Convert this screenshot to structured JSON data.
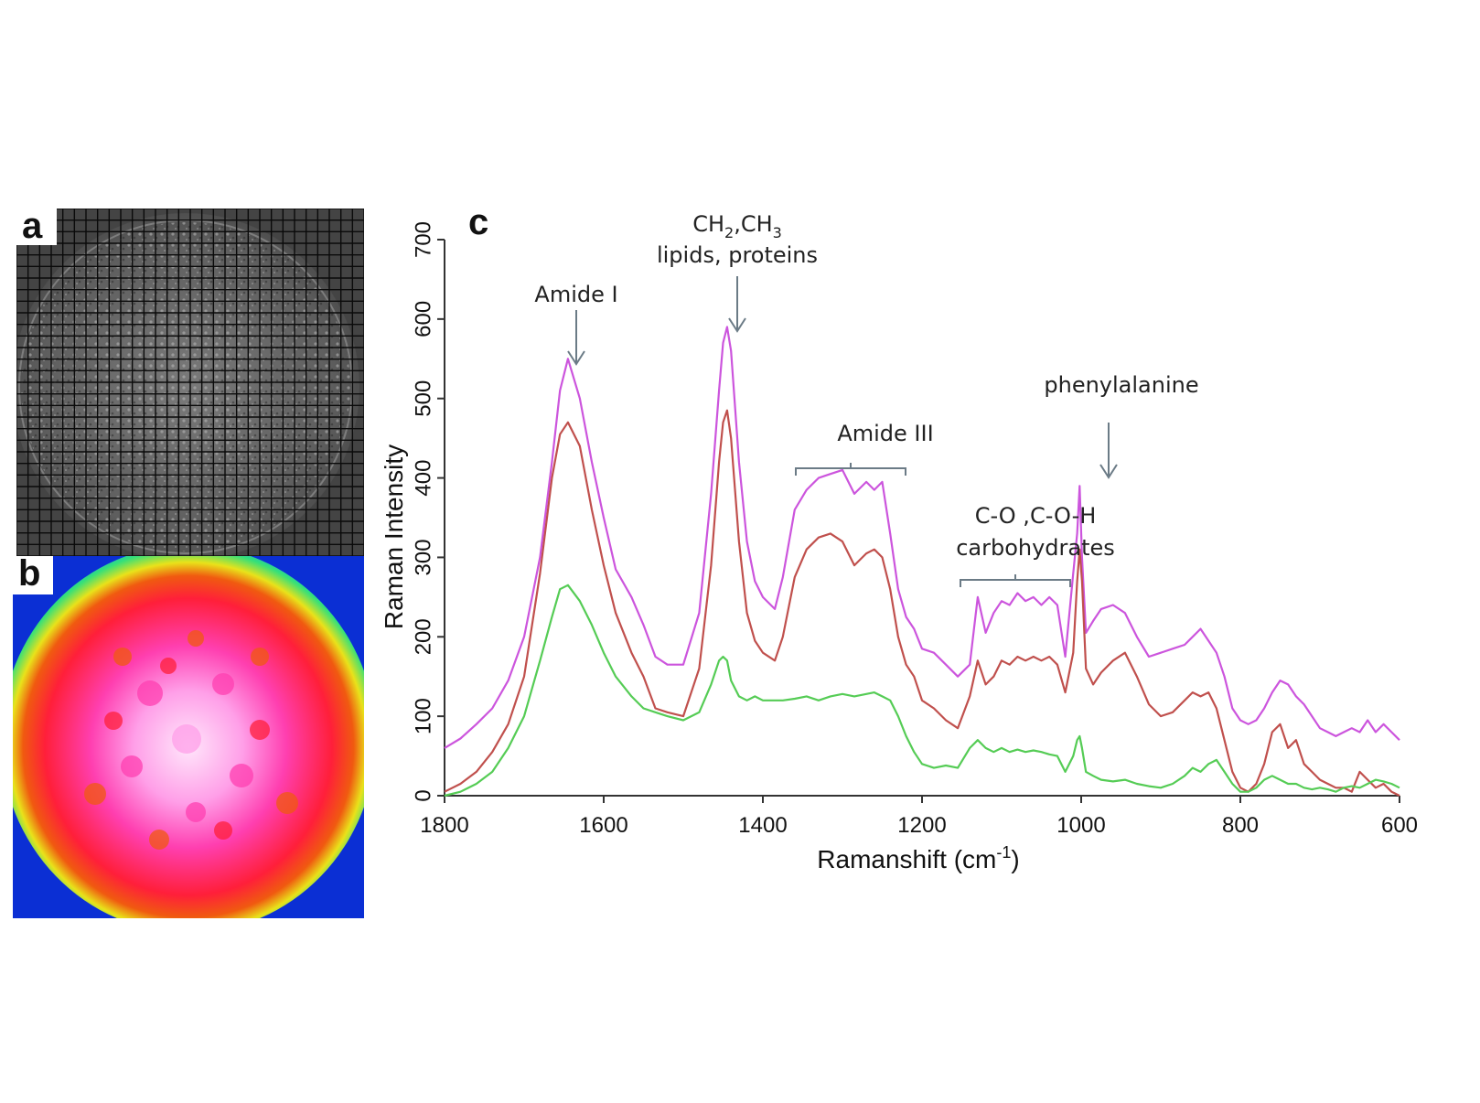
{
  "panel_labels": {
    "a": "a",
    "b": "b",
    "c": "c"
  },
  "panels": {
    "a": {
      "grid_rows": 30,
      "grid_cols": 30
    },
    "b": {
      "colormap": [
        "#0b2fd4",
        "#1aa0f0",
        "#33e07a",
        "#e9e21a",
        "#f05a10",
        "#ff1f3a",
        "#ff3fb0",
        "#ff9fe8",
        "#ffe6fb"
      ]
    }
  },
  "chart_data": {
    "type": "line",
    "xlabel": "Ramanshift (cm",
    "xlabel_sup": "-1",
    "xlabel_end": ")",
    "ylabel": "Raman Intensity",
    "xlim": [
      1800,
      600
    ],
    "ylim": [
      0,
      700
    ],
    "x_ticks": [
      1800,
      1600,
      1400,
      1200,
      1000,
      800,
      600
    ],
    "y_ticks": [
      0,
      100,
      200,
      300,
      400,
      500,
      600,
      700
    ],
    "grid": false,
    "series": [
      {
        "color": "#cc55dd",
        "x": [
          1800,
          1780,
          1760,
          1740,
          1720,
          1700,
          1680,
          1665,
          1655,
          1645,
          1630,
          1615,
          1600,
          1585,
          1565,
          1550,
          1535,
          1520,
          1500,
          1480,
          1465,
          1455,
          1450,
          1445,
          1440,
          1430,
          1420,
          1410,
          1400,
          1385,
          1375,
          1360,
          1345,
          1330,
          1315,
          1300,
          1285,
          1270,
          1260,
          1250,
          1240,
          1230,
          1220,
          1210,
          1200,
          1185,
          1170,
          1155,
          1140,
          1130,
          1120,
          1110,
          1100,
          1090,
          1080,
          1070,
          1060,
          1050,
          1040,
          1030,
          1020,
          1010,
          1005,
          1002,
          999,
          994,
          985,
          975,
          960,
          945,
          930,
          915,
          900,
          885,
          870,
          860,
          850,
          840,
          830,
          820,
          810,
          800,
          790,
          780,
          770,
          760,
          750,
          740,
          730,
          720,
          710,
          700,
          690,
          680,
          670,
          660,
          650,
          640,
          630,
          620,
          610,
          600
        ],
        "y": [
          60,
          72,
          90,
          110,
          145,
          200,
          300,
          420,
          510,
          550,
          500,
          420,
          350,
          285,
          250,
          215,
          175,
          165,
          165,
          230,
          380,
          510,
          570,
          590,
          560,
          420,
          320,
          270,
          250,
          235,
          275,
          360,
          385,
          400,
          405,
          410,
          380,
          395,
          385,
          395,
          330,
          260,
          225,
          210,
          185,
          180,
          165,
          150,
          165,
          250,
          205,
          230,
          245,
          240,
          255,
          245,
          250,
          240,
          250,
          240,
          175,
          280,
          330,
          390,
          300,
          205,
          220,
          235,
          240,
          230,
          200,
          175,
          180,
          185,
          190,
          200,
          210,
          195,
          180,
          150,
          110,
          95,
          90,
          95,
          110,
          130,
          145,
          140,
          125,
          115,
          100,
          85,
          80,
          75,
          80,
          85,
          80,
          95,
          80,
          90,
          80,
          70
        ]
      },
      {
        "color": "#c0504d",
        "x": [
          1800,
          1780,
          1760,
          1740,
          1720,
          1700,
          1680,
          1665,
          1655,
          1645,
          1630,
          1615,
          1600,
          1585,
          1565,
          1550,
          1535,
          1520,
          1500,
          1480,
          1465,
          1455,
          1450,
          1445,
          1440,
          1430,
          1420,
          1410,
          1400,
          1385,
          1375,
          1360,
          1345,
          1330,
          1315,
          1300,
          1285,
          1270,
          1260,
          1250,
          1240,
          1230,
          1220,
          1210,
          1200,
          1185,
          1170,
          1155,
          1140,
          1130,
          1120,
          1110,
          1100,
          1090,
          1080,
          1070,
          1060,
          1050,
          1040,
          1030,
          1020,
          1010,
          1005,
          1002,
          999,
          994,
          985,
          975,
          960,
          945,
          930,
          915,
          900,
          885,
          870,
          860,
          850,
          840,
          830,
          820,
          810,
          800,
          790,
          780,
          770,
          760,
          750,
          740,
          730,
          720,
          710,
          700,
          690,
          680,
          670,
          660,
          650,
          640,
          630,
          620,
          610,
          600
        ],
        "y": [
          5,
          15,
          30,
          55,
          90,
          150,
          280,
          400,
          455,
          470,
          440,
          360,
          290,
          230,
          180,
          150,
          110,
          105,
          100,
          160,
          290,
          420,
          470,
          485,
          450,
          320,
          230,
          195,
          180,
          170,
          200,
          275,
          310,
          325,
          330,
          320,
          290,
          305,
          310,
          300,
          260,
          200,
          165,
          150,
          120,
          110,
          95,
          85,
          125,
          170,
          140,
          150,
          170,
          165,
          175,
          170,
          175,
          170,
          175,
          165,
          130,
          180,
          270,
          310,
          270,
          160,
          140,
          155,
          170,
          180,
          150,
          115,
          100,
          105,
          120,
          130,
          125,
          130,
          110,
          70,
          30,
          10,
          5,
          15,
          40,
          80,
          90,
          60,
          70,
          40,
          30,
          20,
          15,
          10,
          10,
          5,
          30,
          20,
          10,
          15,
          5,
          0
        ]
      },
      {
        "color": "#55cc55",
        "x": [
          1800,
          1780,
          1760,
          1740,
          1720,
          1700,
          1680,
          1665,
          1655,
          1645,
          1630,
          1615,
          1600,
          1585,
          1565,
          1550,
          1535,
          1520,
          1500,
          1480,
          1465,
          1455,
          1450,
          1445,
          1440,
          1430,
          1420,
          1410,
          1400,
          1385,
          1375,
          1360,
          1345,
          1330,
          1315,
          1300,
          1285,
          1270,
          1260,
          1250,
          1240,
          1230,
          1220,
          1210,
          1200,
          1185,
          1170,
          1155,
          1140,
          1130,
          1120,
          1110,
          1100,
          1090,
          1080,
          1070,
          1060,
          1050,
          1040,
          1030,
          1020,
          1010,
          1005,
          1002,
          999,
          994,
          985,
          975,
          960,
          945,
          930,
          915,
          900,
          885,
          870,
          860,
          850,
          840,
          830,
          820,
          810,
          800,
          790,
          780,
          770,
          760,
          750,
          740,
          730,
          720,
          710,
          700,
          690,
          680,
          670,
          660,
          650,
          640,
          630,
          620,
          610,
          600
        ],
        "y": [
          0,
          5,
          15,
          30,
          60,
          100,
          170,
          225,
          260,
          265,
          245,
          215,
          180,
          150,
          125,
          110,
          105,
          100,
          95,
          105,
          140,
          170,
          175,
          170,
          145,
          125,
          120,
          125,
          120,
          120,
          120,
          122,
          125,
          120,
          125,
          128,
          125,
          128,
          130,
          125,
          120,
          100,
          75,
          55,
          40,
          35,
          38,
          35,
          60,
          70,
          60,
          55,
          60,
          55,
          58,
          55,
          57,
          55,
          52,
          50,
          30,
          50,
          70,
          75,
          60,
          30,
          25,
          20,
          18,
          20,
          15,
          12,
          10,
          15,
          25,
          35,
          30,
          40,
          45,
          30,
          15,
          5,
          5,
          10,
          20,
          25,
          20,
          15,
          15,
          10,
          8,
          10,
          8,
          5,
          10,
          12,
          10,
          15,
          20,
          18,
          15,
          10
        ]
      }
    ],
    "annotations": {
      "ch2": {
        "main1": "CH",
        "sub1": "2",
        "main2": ",CH",
        "sub2": "3"
      },
      "lipids": "lipids, proteins",
      "amide1": "Amide I",
      "amide3": "Amide III",
      "phenyl": "phenylalanine",
      "co": "C-O ,C-O-H",
      "carbo": "carbohydrates"
    }
  }
}
